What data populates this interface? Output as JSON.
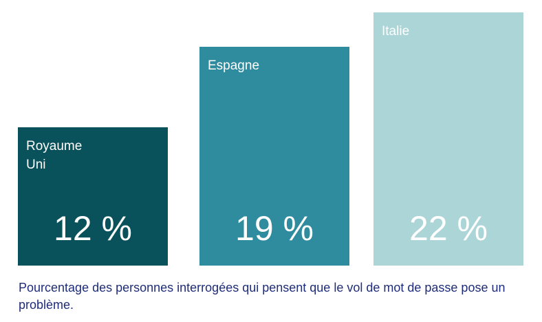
{
  "chart_data": {
    "type": "bar",
    "categories": [
      "Royaume\nUni",
      "Espagne",
      "Italie"
    ],
    "values": [
      12,
      19,
      22
    ],
    "value_labels": [
      "12 %",
      "19 %",
      "22 %"
    ],
    "colors": [
      "#0a525b",
      "#2e8c9e",
      "#abd5d7"
    ],
    "ylim": [
      0,
      22
    ],
    "grid": false,
    "legend": "none"
  },
  "caption": "Pourcentage des personnes interrogées qui pensent que le vol de mot de passe pose un problème."
}
